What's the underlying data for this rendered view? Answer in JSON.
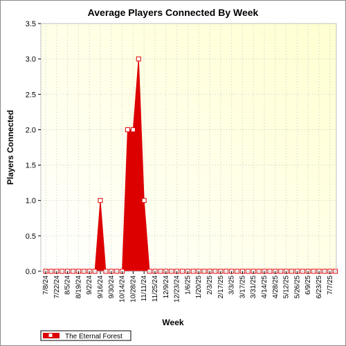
{
  "chart_data": {
    "type": "area",
    "title": "Average Players Connected By Week",
    "xlabel": "Week",
    "ylabel": "Players Connected",
    "ylim": [
      0,
      3.5
    ],
    "yticks": [
      "0.0",
      "0.5",
      "1.0",
      "1.5",
      "2.0",
      "2.5",
      "3.0",
      "3.5"
    ],
    "xticklabels": [
      "7/8/24",
      "7/22/24",
      "8/5/24",
      "8/19/24",
      "9/2/24",
      "9/16/24",
      "9/30/24",
      "10/14/24",
      "10/28/24",
      "11/11/24",
      "11/25/24",
      "12/9/24",
      "12/23/24",
      "1/6/25",
      "1/20/25",
      "2/3/25",
      "2/17/25",
      "3/3/25",
      "3/17/25",
      "3/31/25",
      "4/14/25",
      "4/28/25",
      "5/12/25",
      "5/26/25",
      "6/9/25",
      "6/23/25",
      "7/7/25"
    ],
    "x": [
      "7/8/24",
      "7/15/24",
      "7/22/24",
      "7/29/24",
      "8/5/24",
      "8/12/24",
      "8/19/24",
      "8/26/24",
      "9/2/24",
      "9/9/24",
      "9/16/24",
      "9/23/24",
      "9/30/24",
      "10/7/24",
      "10/14/24",
      "10/21/24",
      "10/28/24",
      "11/4/24",
      "11/11/24",
      "11/18/24",
      "11/25/24",
      "12/2/24",
      "12/9/24",
      "12/16/24",
      "12/23/24",
      "12/30/24",
      "1/6/25",
      "1/13/25",
      "1/20/25",
      "1/27/25",
      "2/3/25",
      "2/10/25",
      "2/17/25",
      "2/24/25",
      "3/3/25",
      "3/10/25",
      "3/17/25",
      "3/24/25",
      "3/31/25",
      "4/7/25",
      "4/14/25",
      "4/21/25",
      "4/28/25",
      "5/5/25",
      "5/12/25",
      "5/19/25",
      "5/26/25",
      "6/2/25",
      "6/9/25",
      "6/16/25",
      "6/23/25",
      "6/30/25",
      "7/7/25",
      "7/14/25"
    ],
    "series": [
      {
        "name": "The Eternal Forest",
        "color": "#dd0000",
        "values": [
          0,
          0,
          0,
          0,
          0,
          0,
          0,
          0,
          0,
          0,
          1,
          0,
          0,
          0,
          0,
          2,
          2,
          3,
          1,
          0,
          0,
          0,
          0,
          0,
          0,
          0,
          0,
          0,
          0,
          0,
          0,
          0,
          0,
          0,
          0,
          0,
          0,
          0,
          0,
          0,
          0,
          0,
          0,
          0,
          0,
          0,
          0,
          0,
          0,
          0,
          0,
          0,
          0,
          0
        ]
      }
    ],
    "grid": true,
    "legend": "bottom-left",
    "background_gradient": [
      "#ffffff",
      "#ffffd0"
    ]
  }
}
